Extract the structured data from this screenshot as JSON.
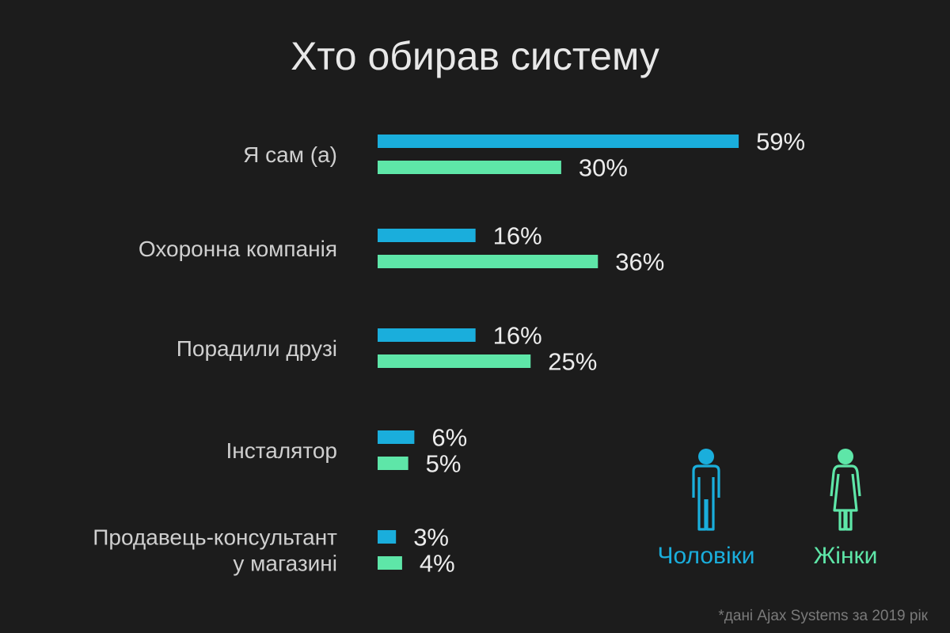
{
  "chart_data": {
    "type": "bar",
    "orientation": "horizontal",
    "title": "Хто обирав систему",
    "categories": [
      "Я сам (а)",
      "Охоронна компанія",
      "Порадили друзі",
      "Інсталятор",
      "Продавець-консультант\nу магазині"
    ],
    "series": [
      {
        "name": "Чоловіки",
        "values": [
          59,
          16,
          16,
          6,
          3
        ],
        "labels": [
          "59%",
          "16%",
          "16%",
          "6%",
          "3%"
        ],
        "color": "#1aaedc"
      },
      {
        "name": "Жінки",
        "values": [
          30,
          36,
          25,
          5,
          4
        ],
        "labels": [
          "30%",
          "36%",
          "25%",
          "5%",
          "4%"
        ],
        "color": "#5ee6a8"
      }
    ],
    "grid": false,
    "legend_position": "bottom-right"
  },
  "legend": {
    "men": {
      "label": "Чоловіки",
      "icon": "man-icon",
      "color": "#1aaedc"
    },
    "women": {
      "label": "Жінки",
      "icon": "woman-icon",
      "color": "#5ee6a8"
    }
  },
  "footnote": "*дані Ajax Systems за 2019 рік"
}
